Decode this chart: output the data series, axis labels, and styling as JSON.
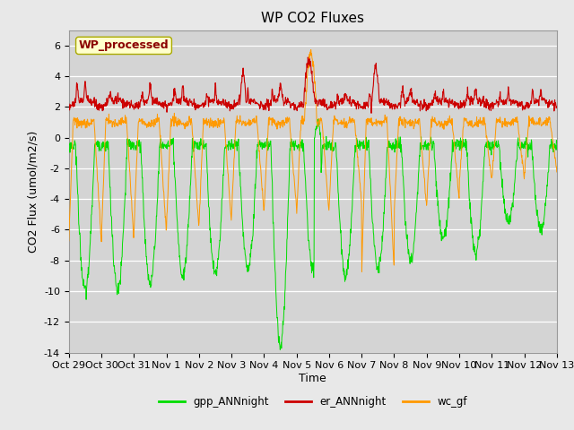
{
  "title": "WP CO2 Fluxes",
  "xlabel": "Time",
  "ylabel": "CO2 Flux (umol/m2/s)",
  "ylim": [
    -14,
    7
  ],
  "yticks": [
    -14,
    -12,
    -10,
    -8,
    -6,
    -4,
    -2,
    0,
    2,
    4,
    6
  ],
  "n_days": 15,
  "points_per_day": 96,
  "bg_color": "#e8e8e8",
  "plot_bg_color": "#d4d4d4",
  "grid_color": "#ffffff",
  "line_color_gpp": "#00dd00",
  "line_color_er": "#cc0000",
  "line_color_wc": "#ff9900",
  "legend_label_gpp": "gpp_ANNnight",
  "legend_label_er": "er_ANNnight",
  "legend_label_wc": "wc_gf",
  "watermark_text": "WP_processed",
  "watermark_color": "#8b0000",
  "watermark_bg": "#ffffcc",
  "xtick_labels": [
    "Oct 29",
    "Oct 30",
    "Oct 31",
    "Nov 1",
    "Nov 2",
    "Nov 3",
    "Nov 4",
    "Nov 5",
    "Nov 6",
    "Nov 7",
    "Nov 8",
    "Nov 9",
    "Nov 10",
    "Nov 11",
    "Nov 12",
    "Nov 13"
  ],
  "title_fontsize": 11,
  "axis_fontsize": 9,
  "tick_fontsize": 8,
  "gpp_day_depths": [
    -10,
    -10,
    -9.5,
    -9,
    -8.8,
    -8.5,
    -13.5,
    -8.5,
    -9.0,
    -8.5,
    -8.0,
    -6.5,
    -7.5,
    -5.5,
    -6.0
  ],
  "wc_day_drops": [
    -6.5,
    -6.5,
    -6.0,
    -5.8,
    -5.5,
    -4.8,
    -4.5,
    -4.8,
    -4.2,
    -8.5,
    -4.5,
    -4.0,
    -2.8,
    -2.5,
    -2.2
  ],
  "er_base": 2.0,
  "er_noise": 0.15
}
